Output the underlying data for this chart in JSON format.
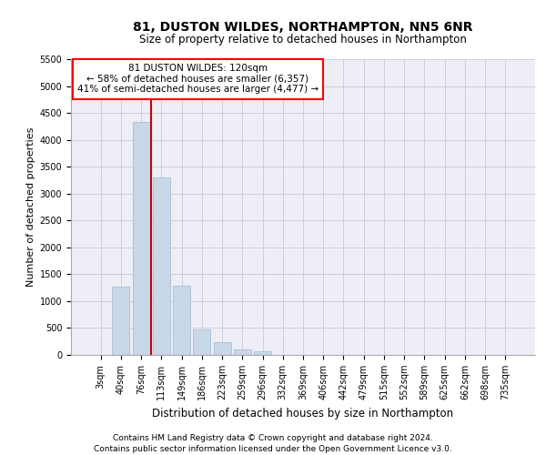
{
  "title1": "81, DUSTON WILDES, NORTHAMPTON, NN5 6NR",
  "title2": "Size of property relative to detached houses in Northampton",
  "xlabel": "Distribution of detached houses by size in Northampton",
  "ylabel": "Number of detached properties",
  "bar_labels": [
    "3sqm",
    "40sqm",
    "76sqm",
    "113sqm",
    "149sqm",
    "186sqm",
    "223sqm",
    "259sqm",
    "296sqm",
    "332sqm",
    "369sqm",
    "406sqm",
    "442sqm",
    "479sqm",
    "515sqm",
    "552sqm",
    "589sqm",
    "625sqm",
    "662sqm",
    "698sqm",
    "735sqm"
  ],
  "bar_values": [
    0,
    1270,
    4340,
    3300,
    1290,
    480,
    240,
    100,
    60,
    0,
    0,
    0,
    0,
    0,
    0,
    0,
    0,
    0,
    0,
    0,
    0
  ],
  "bar_color": "#c8d8e8",
  "bar_edge_color": "#a0b8cc",
  "vline_x": 2.5,
  "vline_color": "#cc0000",
  "ylim": [
    0,
    5500
  ],
  "yticks": [
    0,
    500,
    1000,
    1500,
    2000,
    2500,
    3000,
    3500,
    4000,
    4500,
    5000,
    5500
  ],
  "annotation_line1": "81 DUSTON WILDES: 120sqm",
  "annotation_line2": "← 58% of detached houses are smaller (6,357)",
  "annotation_line3": "41% of semi-detached houses are larger (4,477) →",
  "footnote1": "Contains HM Land Registry data © Crown copyright and database right 2024.",
  "footnote2": "Contains public sector information licensed under the Open Government Licence v3.0.",
  "grid_color": "#c8c8d8",
  "plot_bg_color": "#eeeef6",
  "fig_bg_color": "#ffffff",
  "title1_fontsize": 10,
  "title2_fontsize": 8.5,
  "ylabel_fontsize": 8,
  "xlabel_fontsize": 8.5,
  "tick_fontsize": 7,
  "footnote_fontsize": 6.5,
  "ann_fontsize": 7.5
}
